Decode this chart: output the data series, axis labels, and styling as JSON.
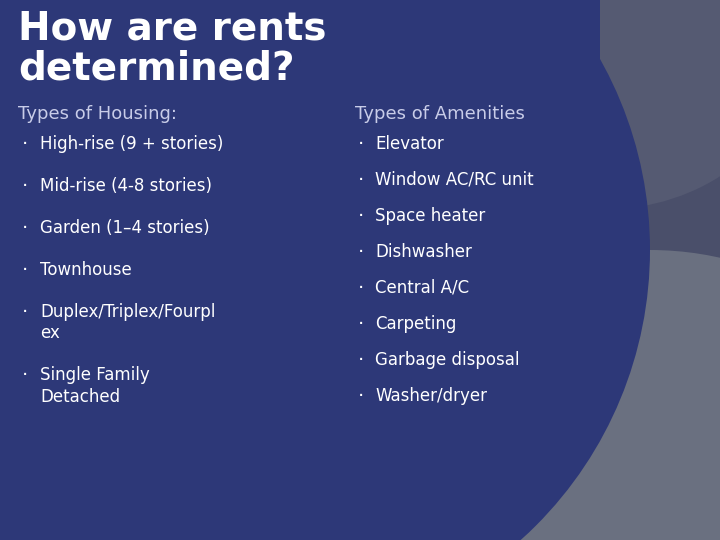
{
  "title_line1": "How are rents",
  "title_line2": "determined?",
  "title_fontsize": 28,
  "title_color": "#ffffff",
  "title_fontweight": "bold",
  "subtitle_housing": "Types of Housing:",
  "subtitle_amenities": "Types of Amenities",
  "subtitle_fontsize": 13,
  "subtitle_color": "#c8cce8",
  "housing_items": [
    "High-rise (9 + stories)",
    "Mid-rise (4-8 stories)",
    "Garden (1–4 stories)",
    "Townhouse",
    "Duplex/Triplex/Fourpl\nex",
    "Single Family\nDetached"
  ],
  "amenity_items": [
    "Elevator",
    "Window AC/RC unit",
    "Space heater",
    "Dishwasher",
    "Central A/C",
    "Carpeting",
    "Garbage disposal",
    "Washer/dryer"
  ],
  "item_fontsize": 12,
  "item_color": "#ffffff",
  "bg_main": "#2d3878",
  "bg_outer_dark": "#4a4f6a",
  "bg_corner_grey": "#6a7080",
  "bg_corner_light": "#8890a8"
}
